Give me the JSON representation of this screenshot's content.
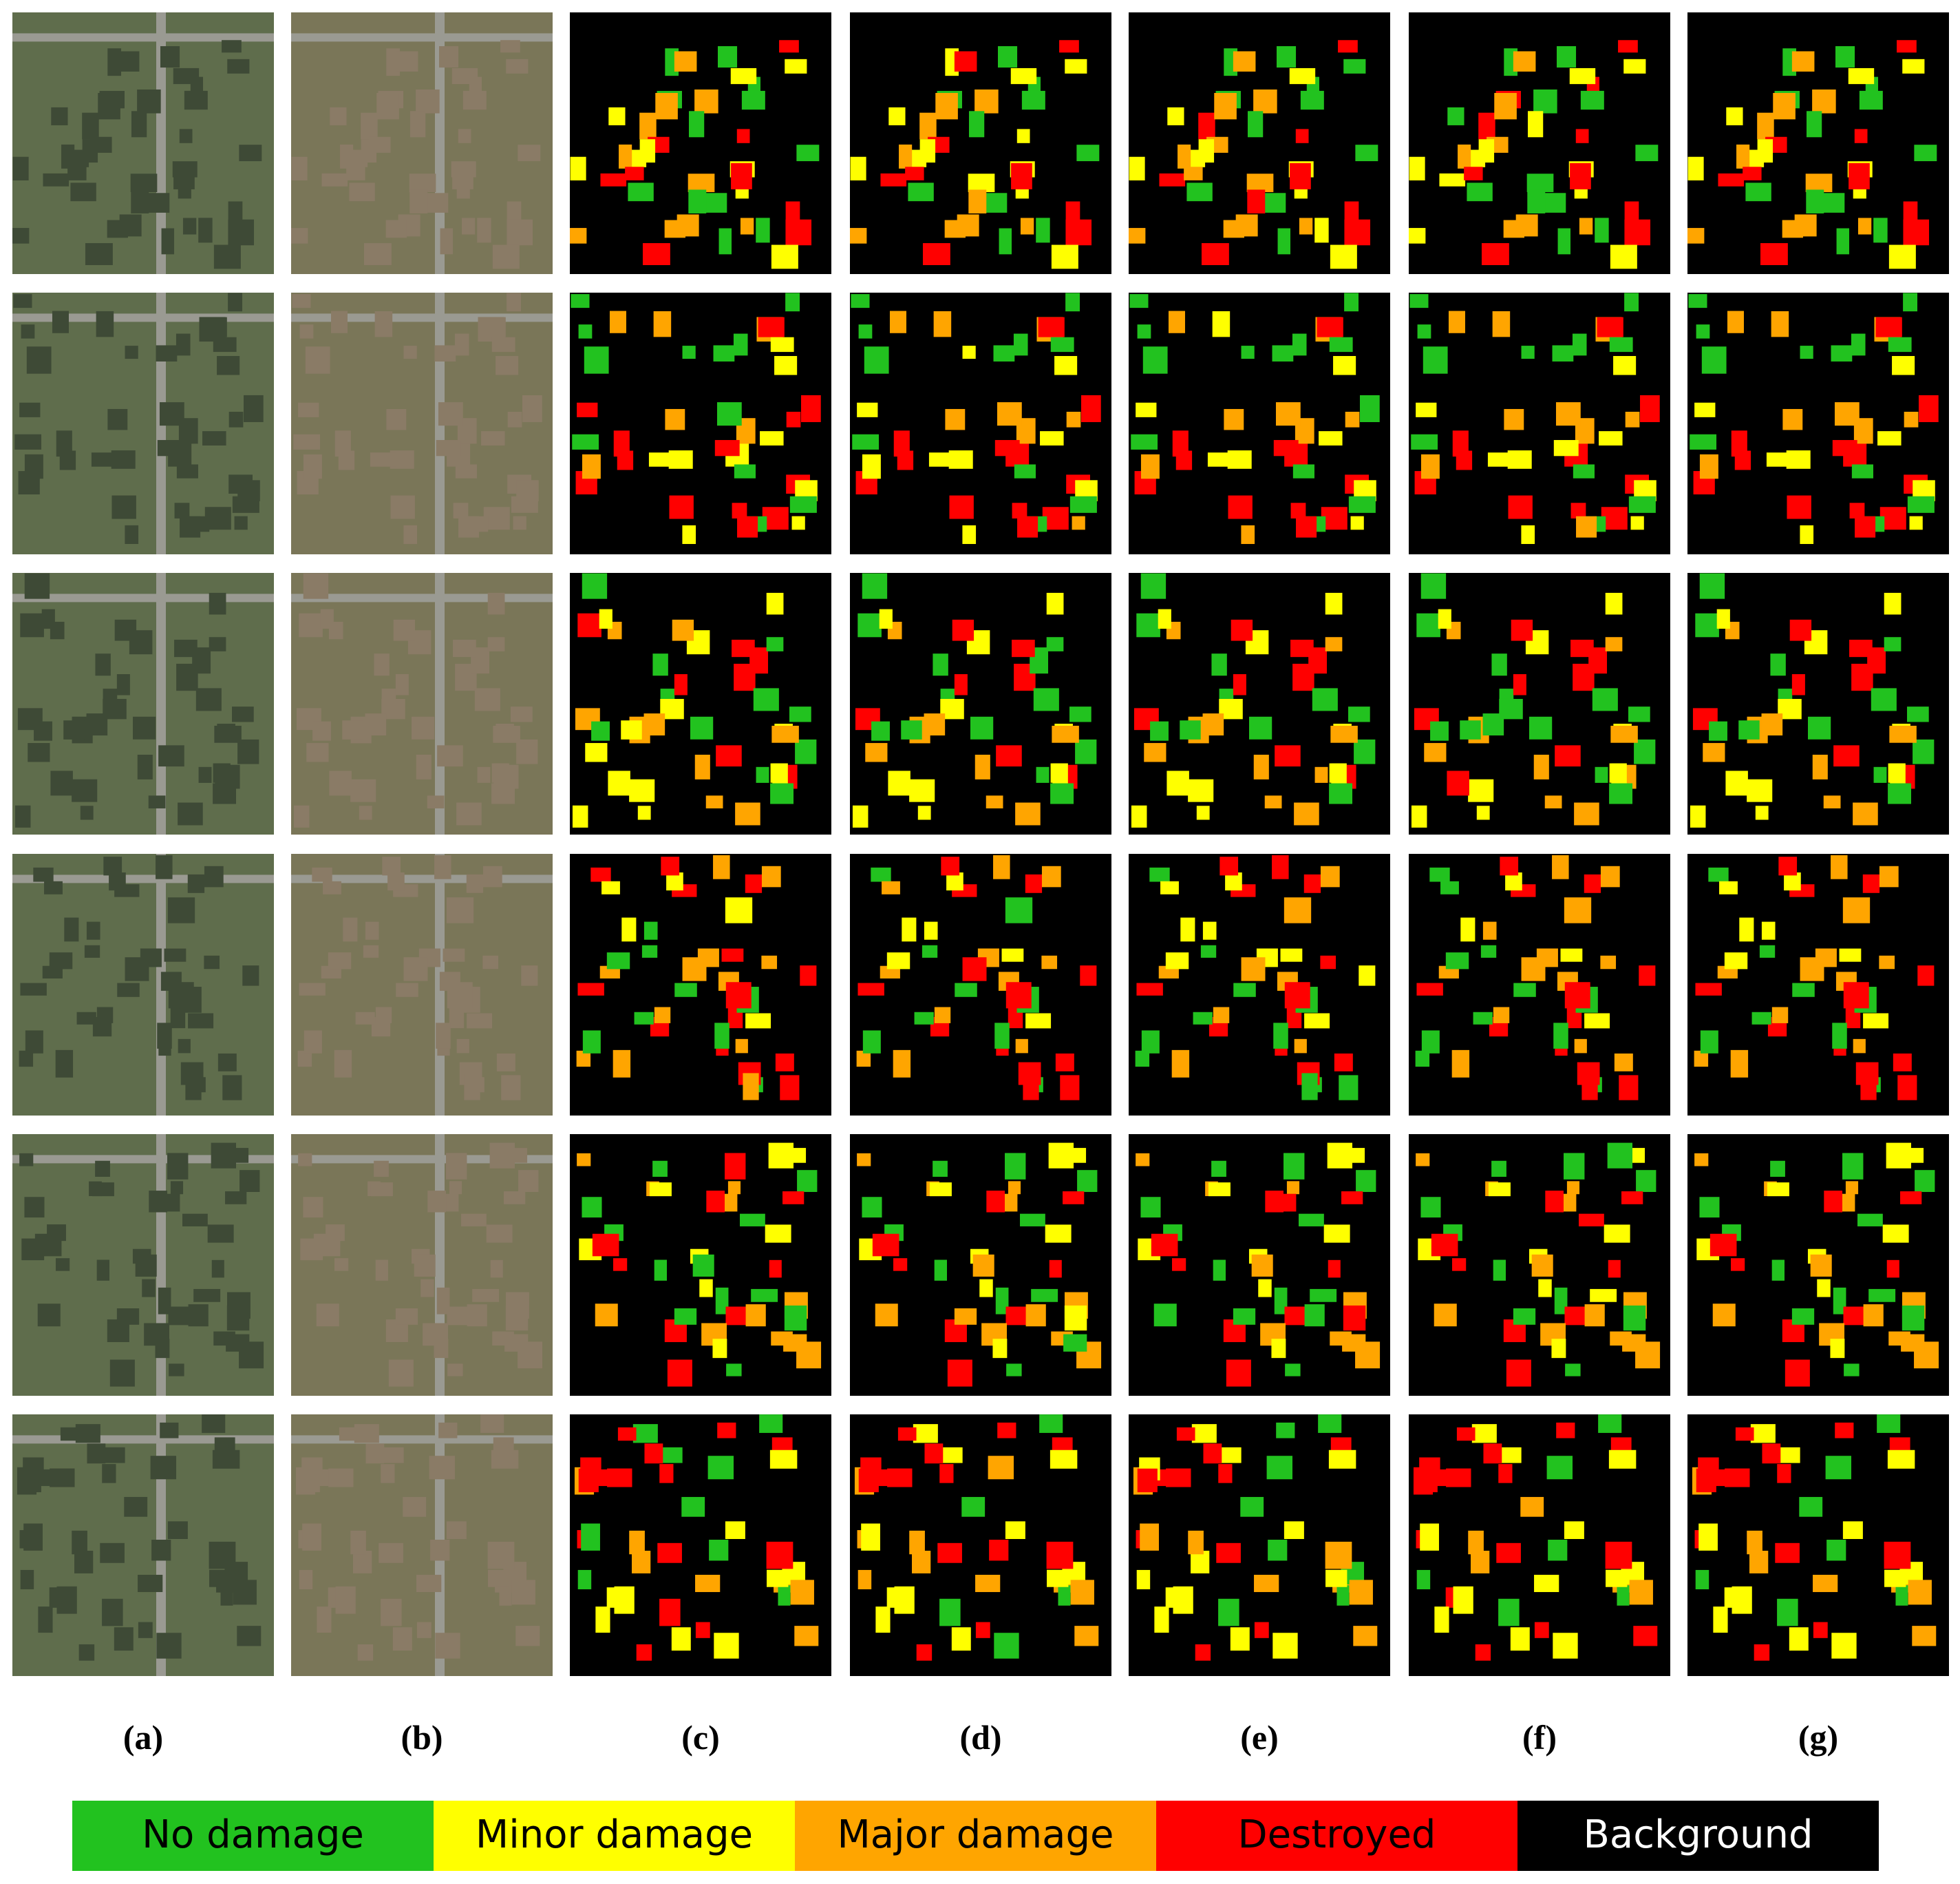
{
  "columns": [
    {
      "label": "(a)"
    },
    {
      "label": "(b)"
    },
    {
      "label": "(c)"
    },
    {
      "label": "(d)"
    },
    {
      "label": "(e)"
    },
    {
      "label": "(f)"
    },
    {
      "label": "(g)"
    }
  ],
  "legend": [
    {
      "label": "No damage",
      "color": "#22c21f"
    },
    {
      "label": "Minor damage",
      "color": "#ffff00"
    },
    {
      "label": "Major damage",
      "color": "#ffa500"
    },
    {
      "label": "Destroyed",
      "color": "#ff0000"
    },
    {
      "label": "Background",
      "color": "#000000"
    }
  ]
}
